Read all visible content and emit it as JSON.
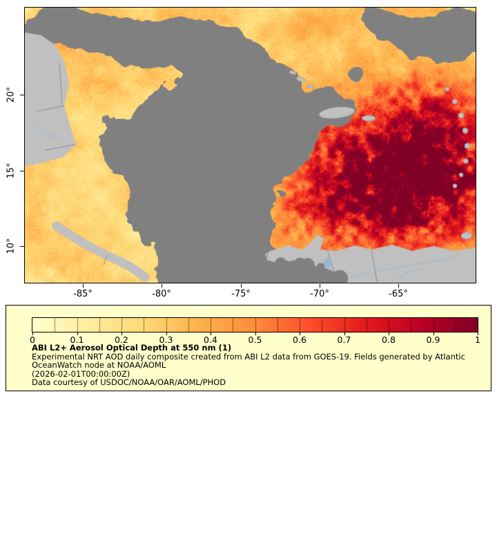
{
  "map": {
    "y_ticks": [
      {
        "label": "20°"
      },
      {
        "label": "15°"
      },
      {
        "label": "10°"
      }
    ],
    "x_ticks": [
      {
        "label": "-85°"
      },
      {
        "label": "-80°"
      },
      {
        "label": "-75°"
      },
      {
        "label": "-70°"
      },
      {
        "label": "-65°"
      }
    ]
  },
  "legend": {
    "background_color": "#FFFFCC",
    "tick_labels": [
      "0",
      "0.1",
      "0.2",
      "0.3",
      "0.4",
      "0.5",
      "0.6",
      "0.7",
      "0.8",
      "0.9",
      "1"
    ],
    "title": "ABI L2+ Aerosol Optical Depth at 550 nm (1)",
    "description_lines": [
      "Experimental NRT AOD daily composite created from ABI L2 data from GOES-19. Fields generated by Atlantic",
      "OceanWatch node at NOAA/AOML"
    ],
    "timestamp": "(2026-02-01T00:00:00Z)",
    "credit": "Data courtesy of USDOC/NOAA/OAR/AOML/PHOD",
    "colormap": [
      {
        "value": 0.0,
        "color": "#FFFFCC"
      },
      {
        "value": 0.125,
        "color": "#FFEDA0"
      },
      {
        "value": 0.25,
        "color": "#FED976"
      },
      {
        "value": 0.375,
        "color": "#FEB24C"
      },
      {
        "value": 0.5,
        "color": "#FD8D3C"
      },
      {
        "value": 0.625,
        "color": "#FC4E2A"
      },
      {
        "value": 0.75,
        "color": "#E31A1C"
      },
      {
        "value": 0.875,
        "color": "#BD0026"
      },
      {
        "value": 1.0,
        "color": "#800026"
      }
    ]
  },
  "map_colors": {
    "missing_data_gray": "#808080",
    "land_gray": "#C0C0C0",
    "border_line": "#8C8C8C",
    "river_blue": "#9DB8D2"
  },
  "chart_data": {
    "type": "heatmap",
    "title": "ABI L2+ Aerosol Optical Depth at 550 nm (1)",
    "colorbar_range": [
      0,
      1
    ],
    "colorbar_ticks": [
      0,
      0.1,
      0.2,
      0.3,
      0.4,
      0.5,
      0.6,
      0.7,
      0.8,
      0.9,
      1
    ],
    "x_axis": {
      "tick_values": [
        -85,
        -80,
        -75,
        -70,
        -65
      ],
      "unit": "degrees longitude"
    },
    "y_axis": {
      "tick_values": [
        20,
        15,
        10
      ],
      "unit": "degrees latitude"
    },
    "legend_position": "bottom"
  }
}
